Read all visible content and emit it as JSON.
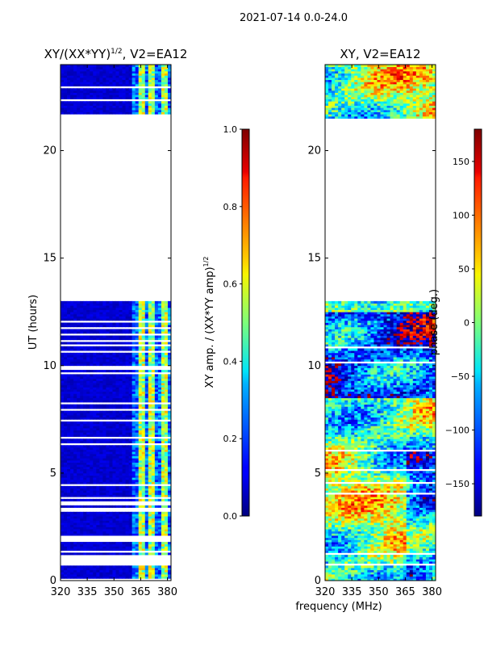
{
  "figure": {
    "suptitle": "2021-07-14 0.0-24.0",
    "xlabel": "frequency (MHz)",
    "ylabel": "UT (hours)"
  },
  "chart_data": [
    {
      "type": "heatmap",
      "title": "XY/(XX*YY)^1/2, V2=EA12",
      "title_main": "XY/(XX*YY)",
      "title_sup": "1/2",
      "title_tail": ", V2=EA12",
      "xlim": [
        320,
        382
      ],
      "ylim": [
        0,
        24
      ],
      "xticks": [
        320,
        335,
        350,
        365,
        380
      ],
      "yticks": [
        0,
        5,
        10,
        15,
        20
      ],
      "data_gaps_hours": [
        [
          13.0,
          21.5
        ]
      ],
      "bright_channel_bands_mhz": [
        [
          364,
          368
        ],
        [
          370,
          373
        ],
        [
          376,
          380
        ]
      ],
      "background_value": 0.05,
      "band_value_range": [
        0.4,
        0.7
      ],
      "colorbar": {
        "label": "XY amp. / (XX*YY amp)^1/2",
        "label_main": "XY amp. / (XX*YY amp)",
        "label_sup": "1/2",
        "range": [
          0.0,
          1.0
        ],
        "ticks": [
          "0.0",
          "0.2",
          "0.4",
          "0.6",
          "0.8",
          "1.0"
        ],
        "colormap": "jet"
      }
    },
    {
      "type": "heatmap",
      "title": "XY, V2=EA12",
      "xlim": [
        320,
        382
      ],
      "ylim": [
        0,
        24
      ],
      "xticks": [
        320,
        335,
        350,
        365,
        380
      ],
      "yticks": [
        0,
        5,
        10,
        15,
        20
      ],
      "data_gaps_hours": [
        [
          13.0,
          21.5
        ]
      ],
      "value_range_deg": [
        -180,
        180
      ],
      "colorbar": {
        "label": "phase (deg.)",
        "range": [
          -180,
          180
        ],
        "ticks": [
          "−150",
          "−100",
          "−50",
          "0",
          "50",
          "100",
          "150"
        ],
        "colormap": "jet"
      }
    }
  ]
}
